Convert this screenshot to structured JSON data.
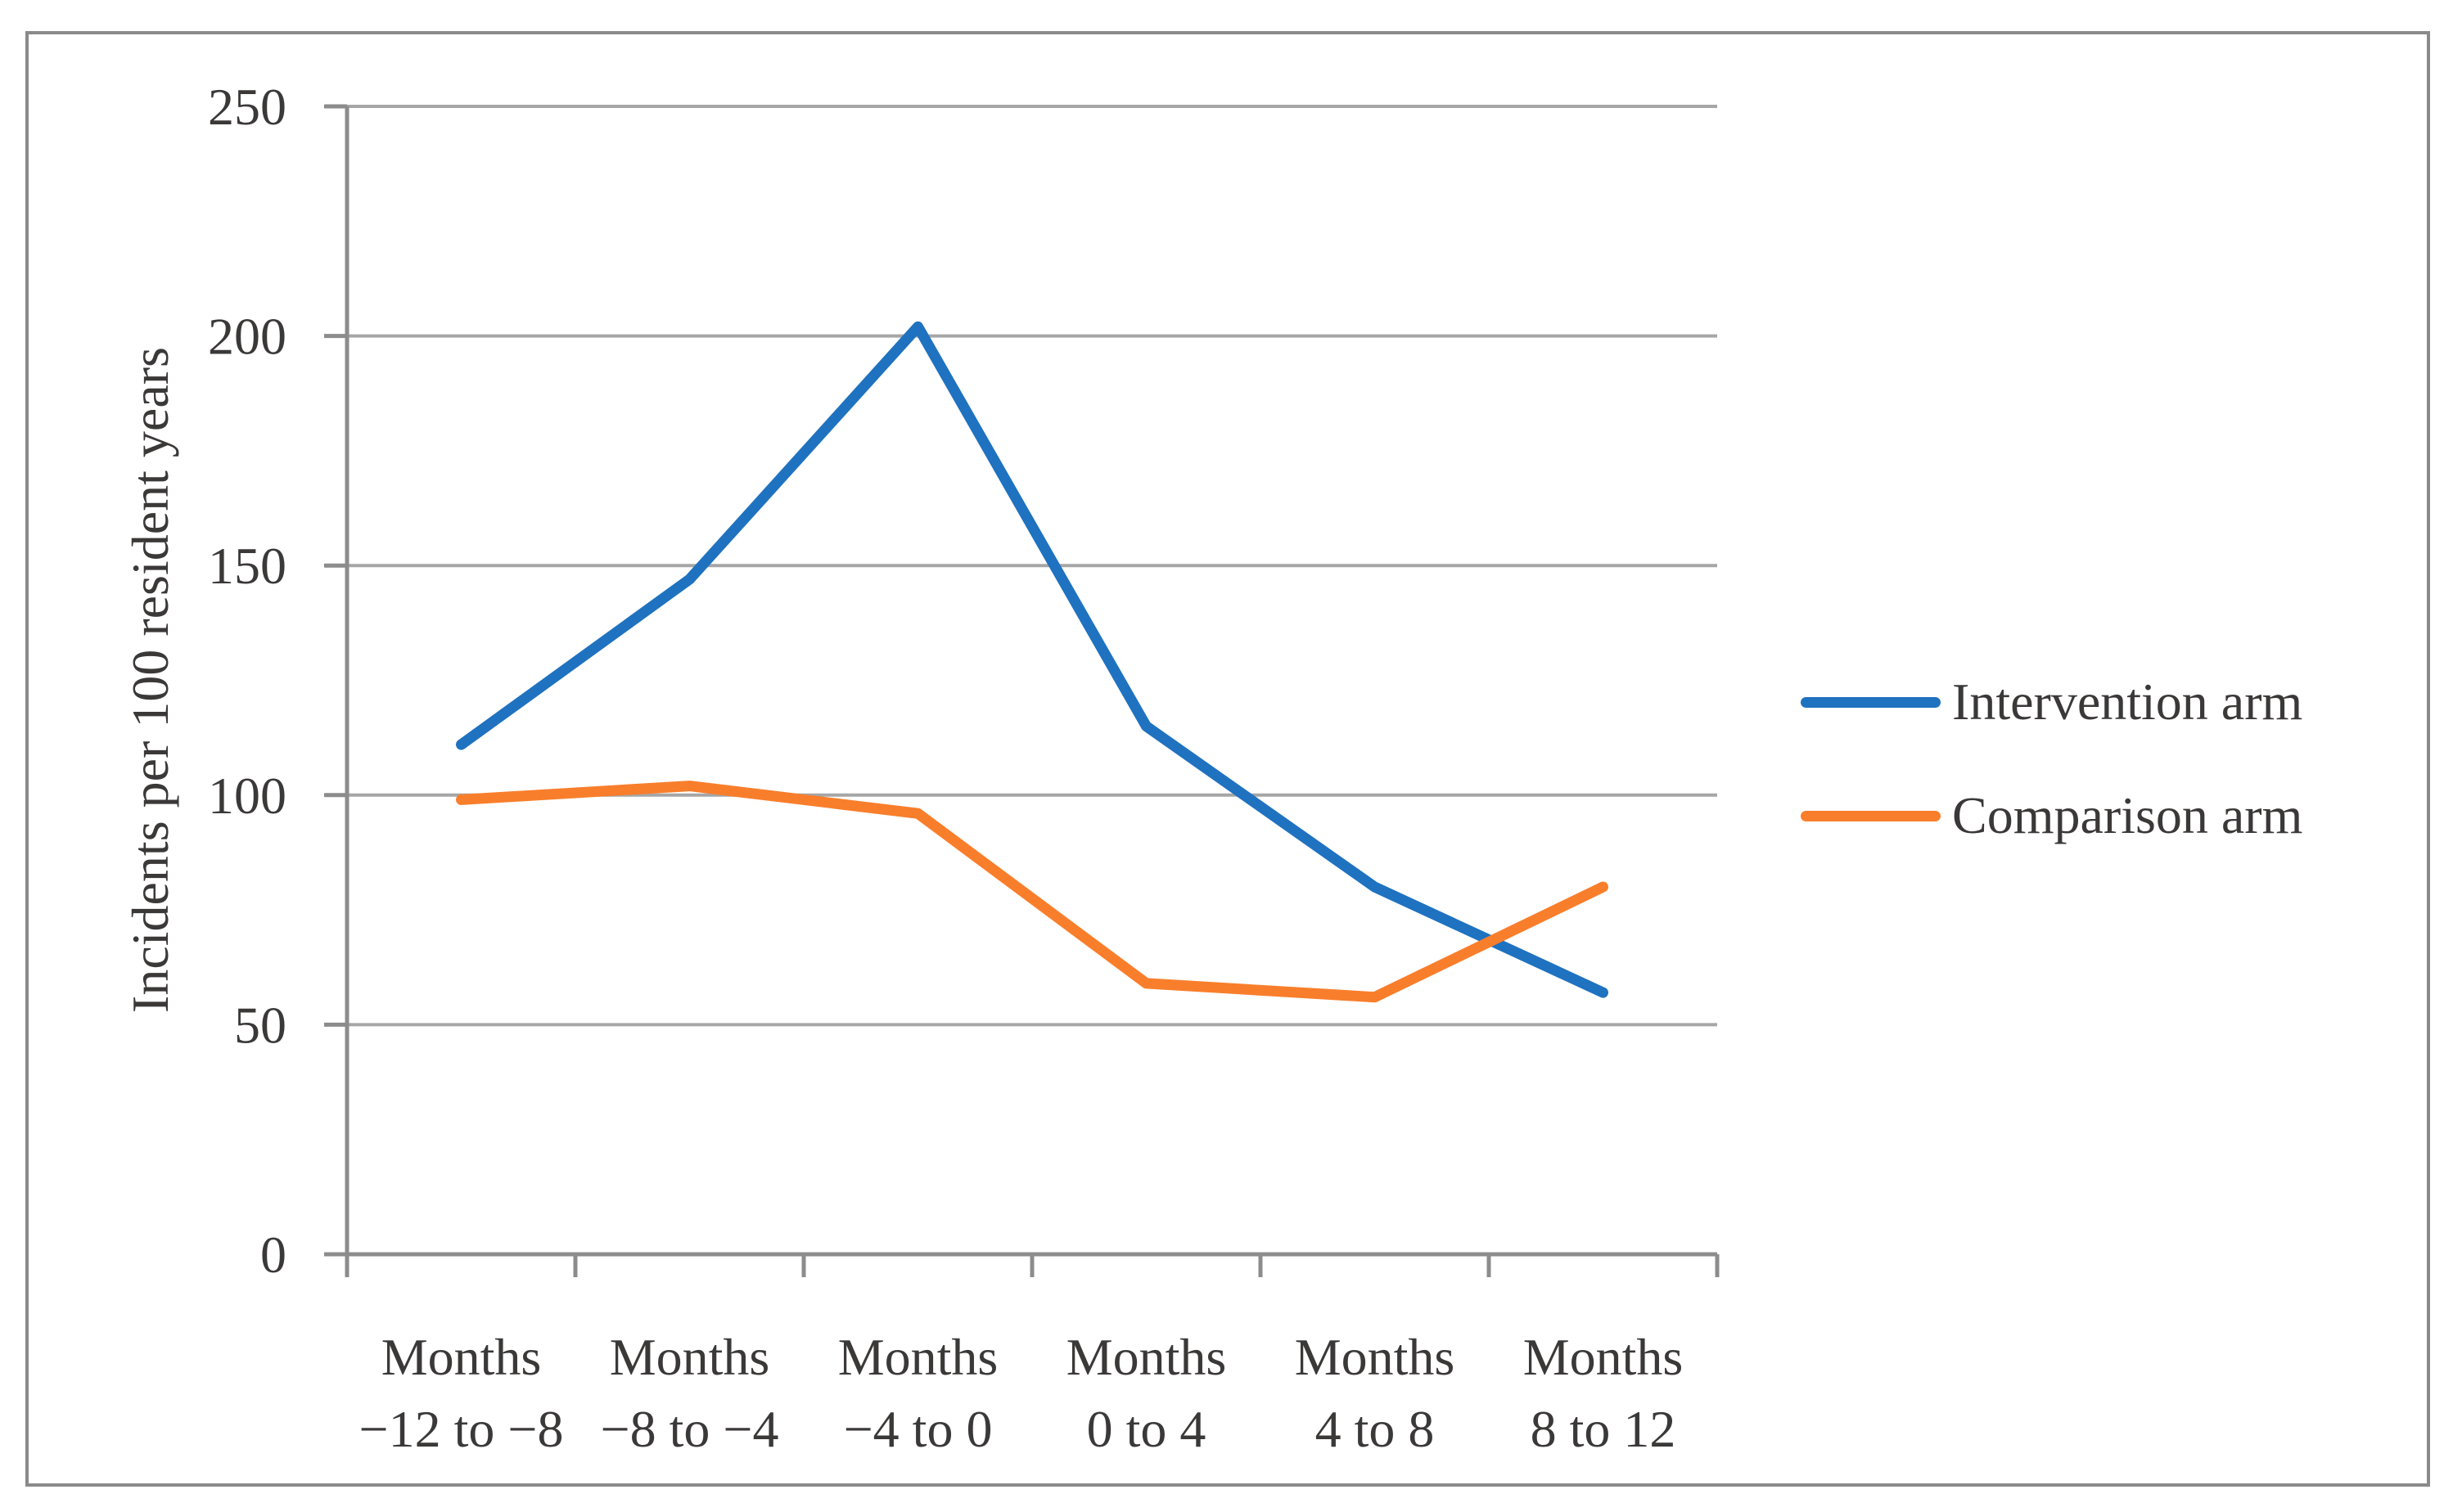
{
  "chart_data": {
    "type": "line",
    "title": "",
    "xlabel": "",
    "ylabel": "Incidents per 100 resident years",
    "ylim": [
      0,
      250
    ],
    "yticks": [
      0,
      50,
      100,
      150,
      200,
      250
    ],
    "grid": "horizontal",
    "legend_position": "right-middle",
    "categories": [
      "Months\n−12 to −8",
      "Months\n−8 to −4",
      "Months\n−4 to 0",
      "Months\n0 to 4",
      "Months\n4 to 8",
      "Months\n8 to 12"
    ],
    "series": [
      {
        "name": "Intervention arm",
        "color": "#1F72BF",
        "values": [
          111,
          147,
          202,
          115,
          80,
          57
        ]
      },
      {
        "name": "Comparison arm",
        "color": "#F97E2B",
        "values": [
          99,
          102,
          96,
          59,
          56,
          80
        ]
      }
    ]
  },
  "colors": {
    "background": "#FFFFFF",
    "frame_border": "#8A8A8A",
    "gridline": "#A6A6A6",
    "axis": "#8C8C8C",
    "text": "#3B3838"
  }
}
